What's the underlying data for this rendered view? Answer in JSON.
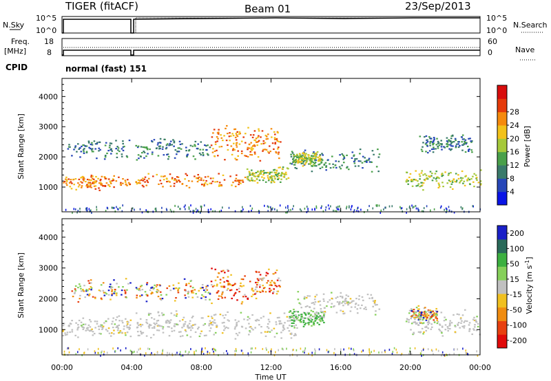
{
  "header": {
    "station": "TIGER (fitACF)",
    "beam": "Beam 01",
    "date": "23/Sep/2013"
  },
  "top_panels": {
    "nsky_label": "N.Sky",
    "nsearch_label": "N.Search",
    "noise_ticks_left": [
      "10^5",
      "10^0"
    ],
    "noise_ticks_right": [
      "10^5",
      "10^0"
    ],
    "freq_label": "Freq.",
    "freq_unit": "[MHz]",
    "freq_ticks": [
      "18",
      "8"
    ],
    "nave_label": "Nave",
    "nave_ticks": [
      "60",
      "0"
    ],
    "cpid_label": "CPID",
    "cpid_text": "normal (fast) 151"
  },
  "chart_data": [
    {
      "type": "heatmap",
      "title": "",
      "xlabel": "",
      "ylabel": "Slant Range [km]",
      "x_ticks": [
        "00:00",
        "04:00",
        "08:00",
        "12:00",
        "16:00",
        "20:00",
        "00:00"
      ],
      "xlim_hours": [
        0,
        24
      ],
      "y_ticks": [
        1000,
        2000,
        3000,
        4000
      ],
      "ylim_km": [
        180,
        4600
      ],
      "colorbar": {
        "label": "Power [dB]",
        "ticks": [
          4,
          8,
          12,
          16,
          20,
          24,
          28
        ],
        "colors": [
          "#0a14e6",
          "#2747b8",
          "#3a7a6b",
          "#4aa04a",
          "#a6c93a",
          "#f2c21a",
          "#f58a0d",
          "#e53a0a",
          "#d80d0d"
        ]
      },
      "scatter_regions": [
        {
          "t": [
            0.0,
            3.9
          ],
          "r": [
            900,
            1450
          ],
          "level": "high"
        },
        {
          "t": [
            4.2,
            10.5
          ],
          "r": [
            950,
            1500
          ],
          "level": "high"
        },
        {
          "t": [
            10.5,
            13.0
          ],
          "r": [
            1150,
            1700
          ],
          "level": "medium"
        },
        {
          "t": [
            8.5,
            12.5
          ],
          "r": [
            1800,
            3100
          ],
          "level": "high"
        },
        {
          "t": [
            0.3,
            8.5
          ],
          "r": [
            1900,
            2700
          ],
          "level": "low"
        },
        {
          "t": [
            13.0,
            18.2
          ],
          "r": [
            1500,
            2300
          ],
          "level": "low"
        },
        {
          "t": [
            13.2,
            14.8
          ],
          "r": [
            1700,
            2200
          ],
          "level": "medium"
        },
        {
          "t": [
            19.7,
            24.0
          ],
          "r": [
            900,
            1650
          ],
          "level": "medium"
        },
        {
          "t": [
            20.5,
            23.5
          ],
          "r": [
            2100,
            2800
          ],
          "level": "low"
        }
      ]
    },
    {
      "type": "heatmap",
      "title": "",
      "xlabel": "Time UT",
      "ylabel": "Slant Range [km]",
      "x_ticks": [
        "00:00",
        "04:00",
        "08:00",
        "12:00",
        "16:00",
        "20:00",
        "00:00"
      ],
      "xlim_hours": [
        0,
        24
      ],
      "y_ticks": [
        1000,
        2000,
        3000,
        4000
      ],
      "ylim_km": [
        180,
        4600
      ],
      "colorbar": {
        "label": "Velocity [m s^-1]",
        "ticks": [
          200,
          100,
          50,
          15,
          -15,
          -50,
          -100,
          -200
        ],
        "colors": [
          "#1a20c8",
          "#2a6a5a",
          "#3cb040",
          "#86d05a",
          "#c0c0c0",
          "#f0c020",
          "#f08c10",
          "#e84010",
          "#e00a0a"
        ]
      },
      "scatter_regions": [
        {
          "t": [
            0.0,
            3.9
          ],
          "r": [
            700,
            1500
          ],
          "kind": "ground"
        },
        {
          "t": [
            4.2,
            13.5
          ],
          "r": [
            700,
            1650
          ],
          "kind": "ground"
        },
        {
          "t": [
            13.5,
            18.2
          ],
          "r": [
            1500,
            2300
          ],
          "kind": "ground"
        },
        {
          "t": [
            8.5,
            12.5
          ],
          "r": [
            1800,
            3100
          ],
          "kind": "negative"
        },
        {
          "t": [
            0.3,
            8.5
          ],
          "r": [
            1900,
            2700
          ],
          "kind": "mixed"
        },
        {
          "t": [
            13.0,
            15.0
          ],
          "r": [
            1100,
            1700
          ],
          "kind": "positive"
        },
        {
          "t": [
            19.7,
            24.0
          ],
          "r": [
            800,
            1700
          ],
          "kind": "ground"
        },
        {
          "t": [
            20.0,
            21.5
          ],
          "r": [
            1200,
            1800
          ],
          "kind": "mixed"
        }
      ]
    }
  ]
}
